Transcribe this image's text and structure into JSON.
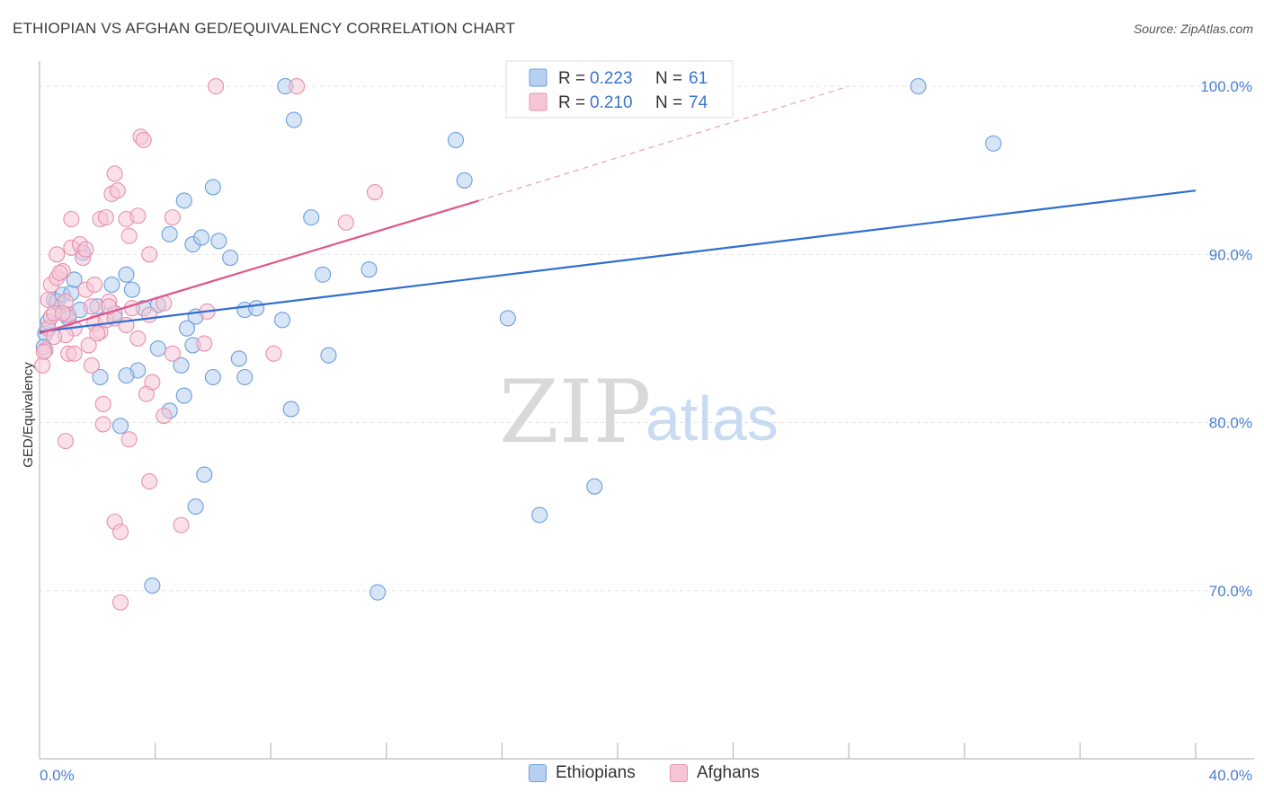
{
  "chart_data": {
    "type": "scatter",
    "title": "ETHIOPIAN VS AFGHAN GED/EQUIVALENCY CORRELATION CHART",
    "source": "Source: ZipAtlas.com",
    "xlabel": "",
    "ylabel": "GED/Equivalency",
    "xlim": [
      0,
      40
    ],
    "ylim": [
      60,
      101.5
    ],
    "x_tick_labels": [
      "0.0%",
      "40.0%"
    ],
    "y_ticks": [
      70,
      80,
      90,
      100
    ],
    "y_tick_labels": [
      "70.0%",
      "80.0%",
      "90.0%",
      "100.0%"
    ],
    "grid": true,
    "watermark": {
      "zip": "ZIP",
      "atlas": "atlas"
    },
    "legend": [
      {
        "r_label": "R =",
        "r_value": "0.223",
        "n_label": "N =",
        "n_value": "61"
      },
      {
        "r_label": "R =",
        "r_value": "0.210",
        "n_label": "N =",
        "n_value": "74"
      }
    ],
    "series": [
      {
        "name": "Ethiopians",
        "color": "#6a9ee0",
        "fill": "#b8d0f0",
        "trend": {
          "x0": 0,
          "y0": 85.4,
          "x1": 40,
          "y1": 93.8,
          "color": "#2f6fcf"
        },
        "points": [
          [
            0.2,
            85.3
          ],
          [
            0.3,
            86.0
          ],
          [
            0.5,
            87.3
          ],
          [
            0.6,
            87.2
          ],
          [
            0.8,
            87.6
          ],
          [
            0.9,
            86.4
          ],
          [
            1.1,
            87.7
          ],
          [
            1.0,
            86.2
          ],
          [
            1.2,
            88.5
          ],
          [
            1.4,
            86.7
          ],
          [
            1.5,
            90.1
          ],
          [
            2.6,
            86.5
          ],
          [
            2.0,
            86.9
          ],
          [
            3.0,
            88.8
          ],
          [
            2.5,
            88.2
          ],
          [
            3.2,
            87.9
          ],
          [
            4.1,
            87.0
          ],
          [
            3.6,
            86.8
          ],
          [
            4.5,
            91.2
          ],
          [
            5.3,
            90.6
          ],
          [
            5.6,
            91.0
          ],
          [
            5.0,
            93.2
          ],
          [
            6.2,
            90.8
          ],
          [
            6.6,
            89.8
          ],
          [
            6.0,
            94.0
          ],
          [
            7.1,
            86.7
          ],
          [
            7.5,
            86.8
          ],
          [
            8.4,
            86.1
          ],
          [
            9.4,
            92.2
          ],
          [
            9.8,
            88.8
          ],
          [
            11.4,
            89.1
          ],
          [
            10.0,
            84.0
          ],
          [
            8.8,
            98.0
          ],
          [
            8.5,
            100.0
          ],
          [
            14.4,
            96.8
          ],
          [
            14.7,
            94.4
          ],
          [
            5.4,
            86.3
          ],
          [
            5.1,
            85.6
          ],
          [
            4.1,
            84.4
          ],
          [
            5.3,
            84.6
          ],
          [
            4.9,
            83.4
          ],
          [
            3.4,
            83.1
          ],
          [
            6.0,
            82.7
          ],
          [
            6.9,
            83.8
          ],
          [
            7.1,
            82.7
          ],
          [
            3.0,
            82.8
          ],
          [
            2.1,
            82.7
          ],
          [
            5.0,
            81.6
          ],
          [
            4.5,
            80.7
          ],
          [
            8.7,
            80.8
          ],
          [
            16.2,
            86.2
          ],
          [
            2.8,
            79.8
          ],
          [
            5.7,
            76.9
          ],
          [
            5.4,
            75.0
          ],
          [
            17.3,
            74.5
          ],
          [
            19.2,
            76.2
          ],
          [
            3.9,
            70.3
          ],
          [
            11.7,
            69.9
          ],
          [
            30.4,
            100.0
          ],
          [
            33.0,
            96.6
          ],
          [
            0.15,
            84.5
          ]
        ]
      },
      {
        "name": "Afghans",
        "color": "#e890ac",
        "fill": "#f6c6d6",
        "trend": {
          "x0": 0,
          "y0": 85.3,
          "x1": 15.2,
          "y1": 93.2,
          "color": "#e0558a"
        },
        "trend_ext": {
          "x0": 15.2,
          "y0": 93.2,
          "x1": 28.0,
          "y1": 100.0
        },
        "points": [
          [
            0.1,
            83.4
          ],
          [
            0.2,
            84.3
          ],
          [
            0.3,
            85.6
          ],
          [
            0.4,
            86.3
          ],
          [
            0.5,
            86.5
          ],
          [
            0.3,
            87.3
          ],
          [
            0.4,
            88.2
          ],
          [
            0.6,
            88.6
          ],
          [
            0.6,
            90.0
          ],
          [
            0.8,
            89.0
          ],
          [
            0.9,
            87.2
          ],
          [
            1.0,
            86.4
          ],
          [
            1.1,
            90.4
          ],
          [
            1.4,
            90.6
          ],
          [
            1.5,
            89.8
          ],
          [
            1.6,
            90.3
          ],
          [
            1.2,
            85.6
          ],
          [
            0.9,
            85.2
          ],
          [
            1.0,
            84.1
          ],
          [
            1.2,
            84.1
          ],
          [
            1.7,
            84.6
          ],
          [
            1.8,
            83.4
          ],
          [
            1.9,
            85.9
          ],
          [
            2.1,
            85.4
          ],
          [
            2.3,
            86.1
          ],
          [
            2.4,
            87.2
          ],
          [
            2.6,
            86.2
          ],
          [
            3.2,
            86.8
          ],
          [
            3.4,
            85.0
          ],
          [
            3.8,
            86.4
          ],
          [
            4.3,
            87.1
          ],
          [
            4.6,
            84.1
          ],
          [
            1.1,
            92.1
          ],
          [
            2.1,
            92.1
          ],
          [
            2.3,
            92.2
          ],
          [
            2.5,
            93.6
          ],
          [
            2.7,
            93.8
          ],
          [
            2.6,
            94.8
          ],
          [
            3.0,
            92.1
          ],
          [
            3.4,
            92.3
          ],
          [
            3.1,
            91.1
          ],
          [
            4.6,
            92.2
          ],
          [
            3.8,
            90.0
          ],
          [
            3.5,
            97.0
          ],
          [
            3.6,
            96.8
          ],
          [
            6.1,
            100.0
          ],
          [
            8.9,
            100.0
          ],
          [
            11.6,
            93.7
          ],
          [
            10.6,
            91.9
          ],
          [
            5.8,
            86.6
          ],
          [
            8.1,
            84.1
          ],
          [
            0.9,
            78.9
          ],
          [
            2.2,
            81.1
          ],
          [
            2.2,
            79.9
          ],
          [
            3.1,
            79.0
          ],
          [
            3.7,
            81.7
          ],
          [
            3.9,
            82.4
          ],
          [
            4.3,
            80.4
          ],
          [
            3.8,
            76.5
          ],
          [
            4.9,
            73.9
          ],
          [
            2.6,
            74.1
          ],
          [
            2.8,
            73.5
          ],
          [
            2.8,
            69.3
          ],
          [
            5.7,
            84.7
          ],
          [
            0.15,
            84.2
          ],
          [
            0.8,
            86.5
          ],
          [
            1.6,
            87.9
          ],
          [
            1.8,
            86.9
          ],
          [
            2.4,
            86.9
          ],
          [
            1.9,
            88.2
          ],
          [
            3.0,
            85.8
          ],
          [
            2.0,
            85.3
          ],
          [
            0.7,
            88.9
          ],
          [
            0.5,
            85.1
          ]
        ]
      }
    ]
  }
}
